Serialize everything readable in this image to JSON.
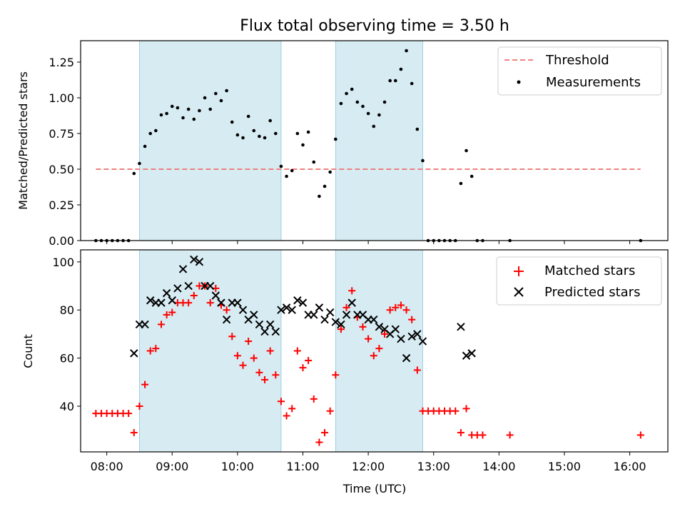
{
  "chart_data": [
    {
      "type": "scatter",
      "title": "Flux total observing time = 3.50 h",
      "xlabel": "",
      "ylabel": "Matched/Predicted stars",
      "xlim": [
        "07:36",
        "16:35"
      ],
      "ylim": [
        0,
        1.4
      ],
      "yticks": [
        0,
        0.25,
        0.5,
        0.75,
        1.0,
        1.25
      ],
      "ytick_labels": [
        "0.00",
        "0.25",
        "0.50",
        "0.75",
        "1.00",
        "1.25"
      ],
      "legend_position": "top-right",
      "shaded_intervals": [
        [
          "08:30",
          "10:40"
        ],
        [
          "11:30",
          "12:50"
        ]
      ],
      "threshold": {
        "name": "Threshold",
        "y": 0.5,
        "x_range": [
          "07:50",
          "16:10"
        ],
        "color": "#f08080"
      },
      "series": [
        {
          "name": "Measurements",
          "color": "#000000",
          "points": [
            [
              "07:50",
              0
            ],
            [
              "07:55",
              0
            ],
            [
              "08:00",
              0
            ],
            [
              "08:05",
              0
            ],
            [
              "08:10",
              0
            ],
            [
              "08:15",
              0
            ],
            [
              "08:20",
              0
            ],
            [
              "08:25",
              0.47
            ],
            [
              "08:30",
              0.54
            ],
            [
              "08:35",
              0.66
            ],
            [
              "08:40",
              0.75
            ],
            [
              "08:45",
              0.77
            ],
            [
              "08:50",
              0.88
            ],
            [
              "08:55",
              0.89
            ],
            [
              "09:00",
              0.94
            ],
            [
              "09:05",
              0.93
            ],
            [
              "09:10",
              0.86
            ],
            [
              "09:15",
              0.92
            ],
            [
              "09:20",
              0.85
            ],
            [
              "09:25",
              0.91
            ],
            [
              "09:30",
              1.0
            ],
            [
              "09:35",
              0.92
            ],
            [
              "09:40",
              1.03
            ],
            [
              "09:45",
              0.98
            ],
            [
              "09:50",
              1.05
            ],
            [
              "09:55",
              0.83
            ],
            [
              "10:00",
              0.74
            ],
            [
              "10:05",
              0.72
            ],
            [
              "10:10",
              0.87
            ],
            [
              "10:15",
              0.77
            ],
            [
              "10:20",
              0.73
            ],
            [
              "10:25",
              0.72
            ],
            [
              "10:30",
              0.84
            ],
            [
              "10:35",
              0.75
            ],
            [
              "10:40",
              0.52
            ],
            [
              "10:45",
              0.45
            ],
            [
              "10:50",
              0.49
            ],
            [
              "10:55",
              0.75
            ],
            [
              "11:00",
              0.67
            ],
            [
              "11:05",
              0.76
            ],
            [
              "11:10",
              0.55
            ],
            [
              "11:15",
              0.31
            ],
            [
              "11:20",
              0.38
            ],
            [
              "11:25",
              0.48
            ],
            [
              "11:30",
              0.71
            ],
            [
              "11:35",
              0.96
            ],
            [
              "11:40",
              1.03
            ],
            [
              "11:45",
              1.06
            ],
            [
              "11:50",
              0.97
            ],
            [
              "11:55",
              0.94
            ],
            [
              "12:00",
              0.89
            ],
            [
              "12:05",
              0.8
            ],
            [
              "12:10",
              0.88
            ],
            [
              "12:15",
              0.97
            ],
            [
              "12:20",
              1.12
            ],
            [
              "12:25",
              1.12
            ],
            [
              "12:30",
              1.2
            ],
            [
              "12:35",
              1.33
            ],
            [
              "12:40",
              1.1
            ],
            [
              "12:45",
              0.78
            ],
            [
              "12:50",
              0.56
            ],
            [
              "12:55",
              0
            ],
            [
              "13:00",
              0
            ],
            [
              "13:05",
              0
            ],
            [
              "13:10",
              0
            ],
            [
              "13:15",
              0
            ],
            [
              "13:20",
              0
            ],
            [
              "13:25",
              0.4
            ],
            [
              "13:30",
              0.63
            ],
            [
              "13:35",
              0.45
            ],
            [
              "13:40",
              0
            ],
            [
              "13:45",
              0
            ],
            [
              "14:10",
              0
            ],
            [
              "16:10",
              0
            ]
          ]
        }
      ]
    },
    {
      "type": "scatter",
      "title": "",
      "xlabel": "Time (UTC)",
      "ylabel": "Count",
      "xlim": [
        "07:36",
        "16:35"
      ],
      "ylim": [
        21,
        105
      ],
      "yticks": [
        40,
        60,
        80,
        100
      ],
      "ytick_labels": [
        "40",
        "60",
        "80",
        "100"
      ],
      "xticks": [
        "08:00",
        "09:00",
        "10:00",
        "11:00",
        "12:00",
        "13:00",
        "14:00",
        "15:00",
        "16:00"
      ],
      "legend_position": "top-right",
      "shaded_intervals": [
        [
          "08:30",
          "10:40"
        ],
        [
          "11:30",
          "12:50"
        ]
      ],
      "series": [
        {
          "name": "Matched stars",
          "marker": "plus",
          "color": "#ff0000",
          "points": [
            [
              "07:50",
              37
            ],
            [
              "07:55",
              37
            ],
            [
              "08:00",
              37
            ],
            [
              "08:05",
              37
            ],
            [
              "08:10",
              37
            ],
            [
              "08:15",
              37
            ],
            [
              "08:20",
              37
            ],
            [
              "08:25",
              29
            ],
            [
              "08:30",
              40
            ],
            [
              "08:35",
              49
            ],
            [
              "08:40",
              63
            ],
            [
              "08:45",
              64
            ],
            [
              "08:50",
              74
            ],
            [
              "08:55",
              78
            ],
            [
              "09:00",
              79
            ],
            [
              "09:05",
              83
            ],
            [
              "09:10",
              83
            ],
            [
              "09:15",
              83
            ],
            [
              "09:20",
              86
            ],
            [
              "09:25",
              90
            ],
            [
              "09:30",
              90
            ],
            [
              "09:35",
              83
            ],
            [
              "09:40",
              89
            ],
            [
              "09:45",
              82
            ],
            [
              "09:50",
              80
            ],
            [
              "09:55",
              69
            ],
            [
              "10:00",
              61
            ],
            [
              "10:05",
              57
            ],
            [
              "10:10",
              67
            ],
            [
              "10:15",
              60
            ],
            [
              "10:20",
              54
            ],
            [
              "10:25",
              51
            ],
            [
              "10:30",
              63
            ],
            [
              "10:35",
              53
            ],
            [
              "10:40",
              42
            ],
            [
              "10:45",
              36
            ],
            [
              "10:50",
              39
            ],
            [
              "10:55",
              63
            ],
            [
              "11:00",
              56
            ],
            [
              "11:05",
              59
            ],
            [
              "11:10",
              43
            ],
            [
              "11:15",
              25
            ],
            [
              "11:20",
              29
            ],
            [
              "11:25",
              38
            ],
            [
              "11:30",
              53
            ],
            [
              "11:35",
              72
            ],
            [
              "11:40",
              81
            ],
            [
              "11:45",
              88
            ],
            [
              "11:50",
              77
            ],
            [
              "11:55",
              73
            ],
            [
              "12:00",
              68
            ],
            [
              "12:05",
              61
            ],
            [
              "12:10",
              64
            ],
            [
              "12:15",
              70
            ],
            [
              "12:20",
              80
            ],
            [
              "12:25",
              81
            ],
            [
              "12:30",
              82
            ],
            [
              "12:35",
              80
            ],
            [
              "12:40",
              76
            ],
            [
              "12:45",
              55
            ],
            [
              "12:50",
              38
            ],
            [
              "12:55",
              38
            ],
            [
              "13:00",
              38
            ],
            [
              "13:05",
              38
            ],
            [
              "13:10",
              38
            ],
            [
              "13:15",
              38
            ],
            [
              "13:20",
              38
            ],
            [
              "13:25",
              29
            ],
            [
              "13:30",
              39
            ],
            [
              "13:35",
              28
            ],
            [
              "13:40",
              28
            ],
            [
              "13:45",
              28
            ],
            [
              "14:10",
              28
            ],
            [
              "16:10",
              28
            ]
          ]
        },
        {
          "name": "Predicted stars",
          "marker": "x",
          "color": "#000000",
          "points": [
            [
              "08:25",
              62
            ],
            [
              "08:30",
              74
            ],
            [
              "08:35",
              74
            ],
            [
              "08:40",
              84
            ],
            [
              "08:45",
              83
            ],
            [
              "08:50",
              83
            ],
            [
              "08:55",
              87
            ],
            [
              "09:00",
              84
            ],
            [
              "09:05",
              89
            ],
            [
              "09:10",
              97
            ],
            [
              "09:15",
              90
            ],
            [
              "09:20",
              101
            ],
            [
              "09:25",
              100
            ],
            [
              "09:30",
              90
            ],
            [
              "09:35",
              90
            ],
            [
              "09:40",
              86
            ],
            [
              "09:45",
              83
            ],
            [
              "09:50",
              76
            ],
            [
              "09:55",
              83
            ],
            [
              "10:00",
              83
            ],
            [
              "10:05",
              80
            ],
            [
              "10:10",
              76
            ],
            [
              "10:15",
              78
            ],
            [
              "10:20",
              74
            ],
            [
              "10:25",
              71
            ],
            [
              "10:30",
              74
            ],
            [
              "10:35",
              71
            ],
            [
              "10:40",
              80
            ],
            [
              "10:45",
              81
            ],
            [
              "10:50",
              80
            ],
            [
              "10:55",
              84
            ],
            [
              "11:00",
              83
            ],
            [
              "11:05",
              78
            ],
            [
              "11:10",
              78
            ],
            [
              "11:15",
              81
            ],
            [
              "11:20",
              76
            ],
            [
              "11:25",
              79
            ],
            [
              "11:30",
              75
            ],
            [
              "11:35",
              74
            ],
            [
              "11:40",
              78
            ],
            [
              "11:45",
              83
            ],
            [
              "11:50",
              78
            ],
            [
              "11:55",
              78
            ],
            [
              "12:00",
              76
            ],
            [
              "12:05",
              76
            ],
            [
              "12:10",
              73
            ],
            [
              "12:15",
              72
            ],
            [
              "12:20",
              70
            ],
            [
              "12:25",
              72
            ],
            [
              "12:30",
              68
            ],
            [
              "12:35",
              60
            ],
            [
              "12:40",
              69
            ],
            [
              "12:45",
              70
            ],
            [
              "12:50",
              67
            ],
            [
              "13:25",
              73
            ],
            [
              "13:30",
              61
            ],
            [
              "13:35",
              62
            ]
          ]
        }
      ]
    }
  ]
}
